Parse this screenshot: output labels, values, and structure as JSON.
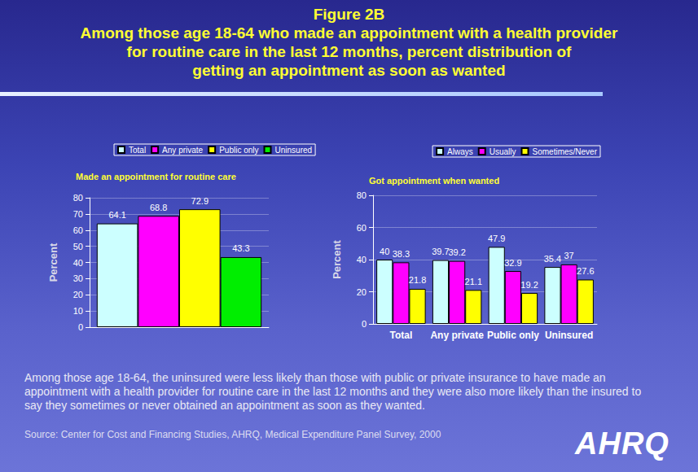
{
  "header": {
    "title": "Figure 2B",
    "subtitle": [
      "Among those age 18-64 who made an appointment with a health provider",
      "for routine care in the last 12 months, percent distribution of",
      "getting an appointment as soon as wanted"
    ]
  },
  "chart_data": [
    {
      "type": "bar",
      "title": "Made an appointment for routine care",
      "y_label": "Percent",
      "categories": [
        null
      ],
      "series": [
        {
          "name": "Total",
          "color": "#ccffff",
          "values": [
            64.1
          ]
        },
        {
          "name": "Any private",
          "color": "#ff00ff",
          "values": [
            68.8
          ]
        },
        {
          "name": "Public only",
          "color": "#ffff00",
          "values": [
            72.9
          ]
        },
        {
          "name": "Uninsured",
          "color": "#00ee00",
          "values": [
            43.3
          ]
        }
      ],
      "ylim": [
        0,
        80
      ],
      "yticks": [
        0,
        10,
        20,
        30,
        40,
        50,
        60,
        70,
        80
      ],
      "grid": true,
      "legend": "top",
      "data_labels": true
    },
    {
      "type": "bar",
      "title": "Got appointment when wanted",
      "y_label": "Percent",
      "categories": [
        "Total",
        "Any private",
        "Public only",
        "Uninsured"
      ],
      "series": [
        {
          "name": "Always",
          "color": "#ccffff",
          "values": [
            40,
            39.7,
            47.9,
            35.4
          ]
        },
        {
          "name": "Usually",
          "color": "#ff00ff",
          "values": [
            38.3,
            39.2,
            32.9,
            37
          ]
        },
        {
          "name": "Sometimes/Never",
          "color": "#ffff00",
          "values": [
            21.8,
            21.1,
            19.2,
            27.6
          ]
        }
      ],
      "ylim": [
        0,
        80
      ],
      "yticks": [
        0,
        20,
        40,
        60,
        80
      ],
      "grid": true,
      "legend": "upper right",
      "data_labels": true
    }
  ],
  "caption": "Among those age 18-64, the uninsured were less likely than those with public or private insurance to have made an appointment with a health provider for routine care in the last 12 months and they were also more likely than the insured to say they sometimes or never obtained an appointment as soon as they wanted.",
  "source": "Source: Center for Cost and Financing Studies, AHRQ, Medical Expenditure Panel Survey, 2000",
  "logo": "AHRQ"
}
